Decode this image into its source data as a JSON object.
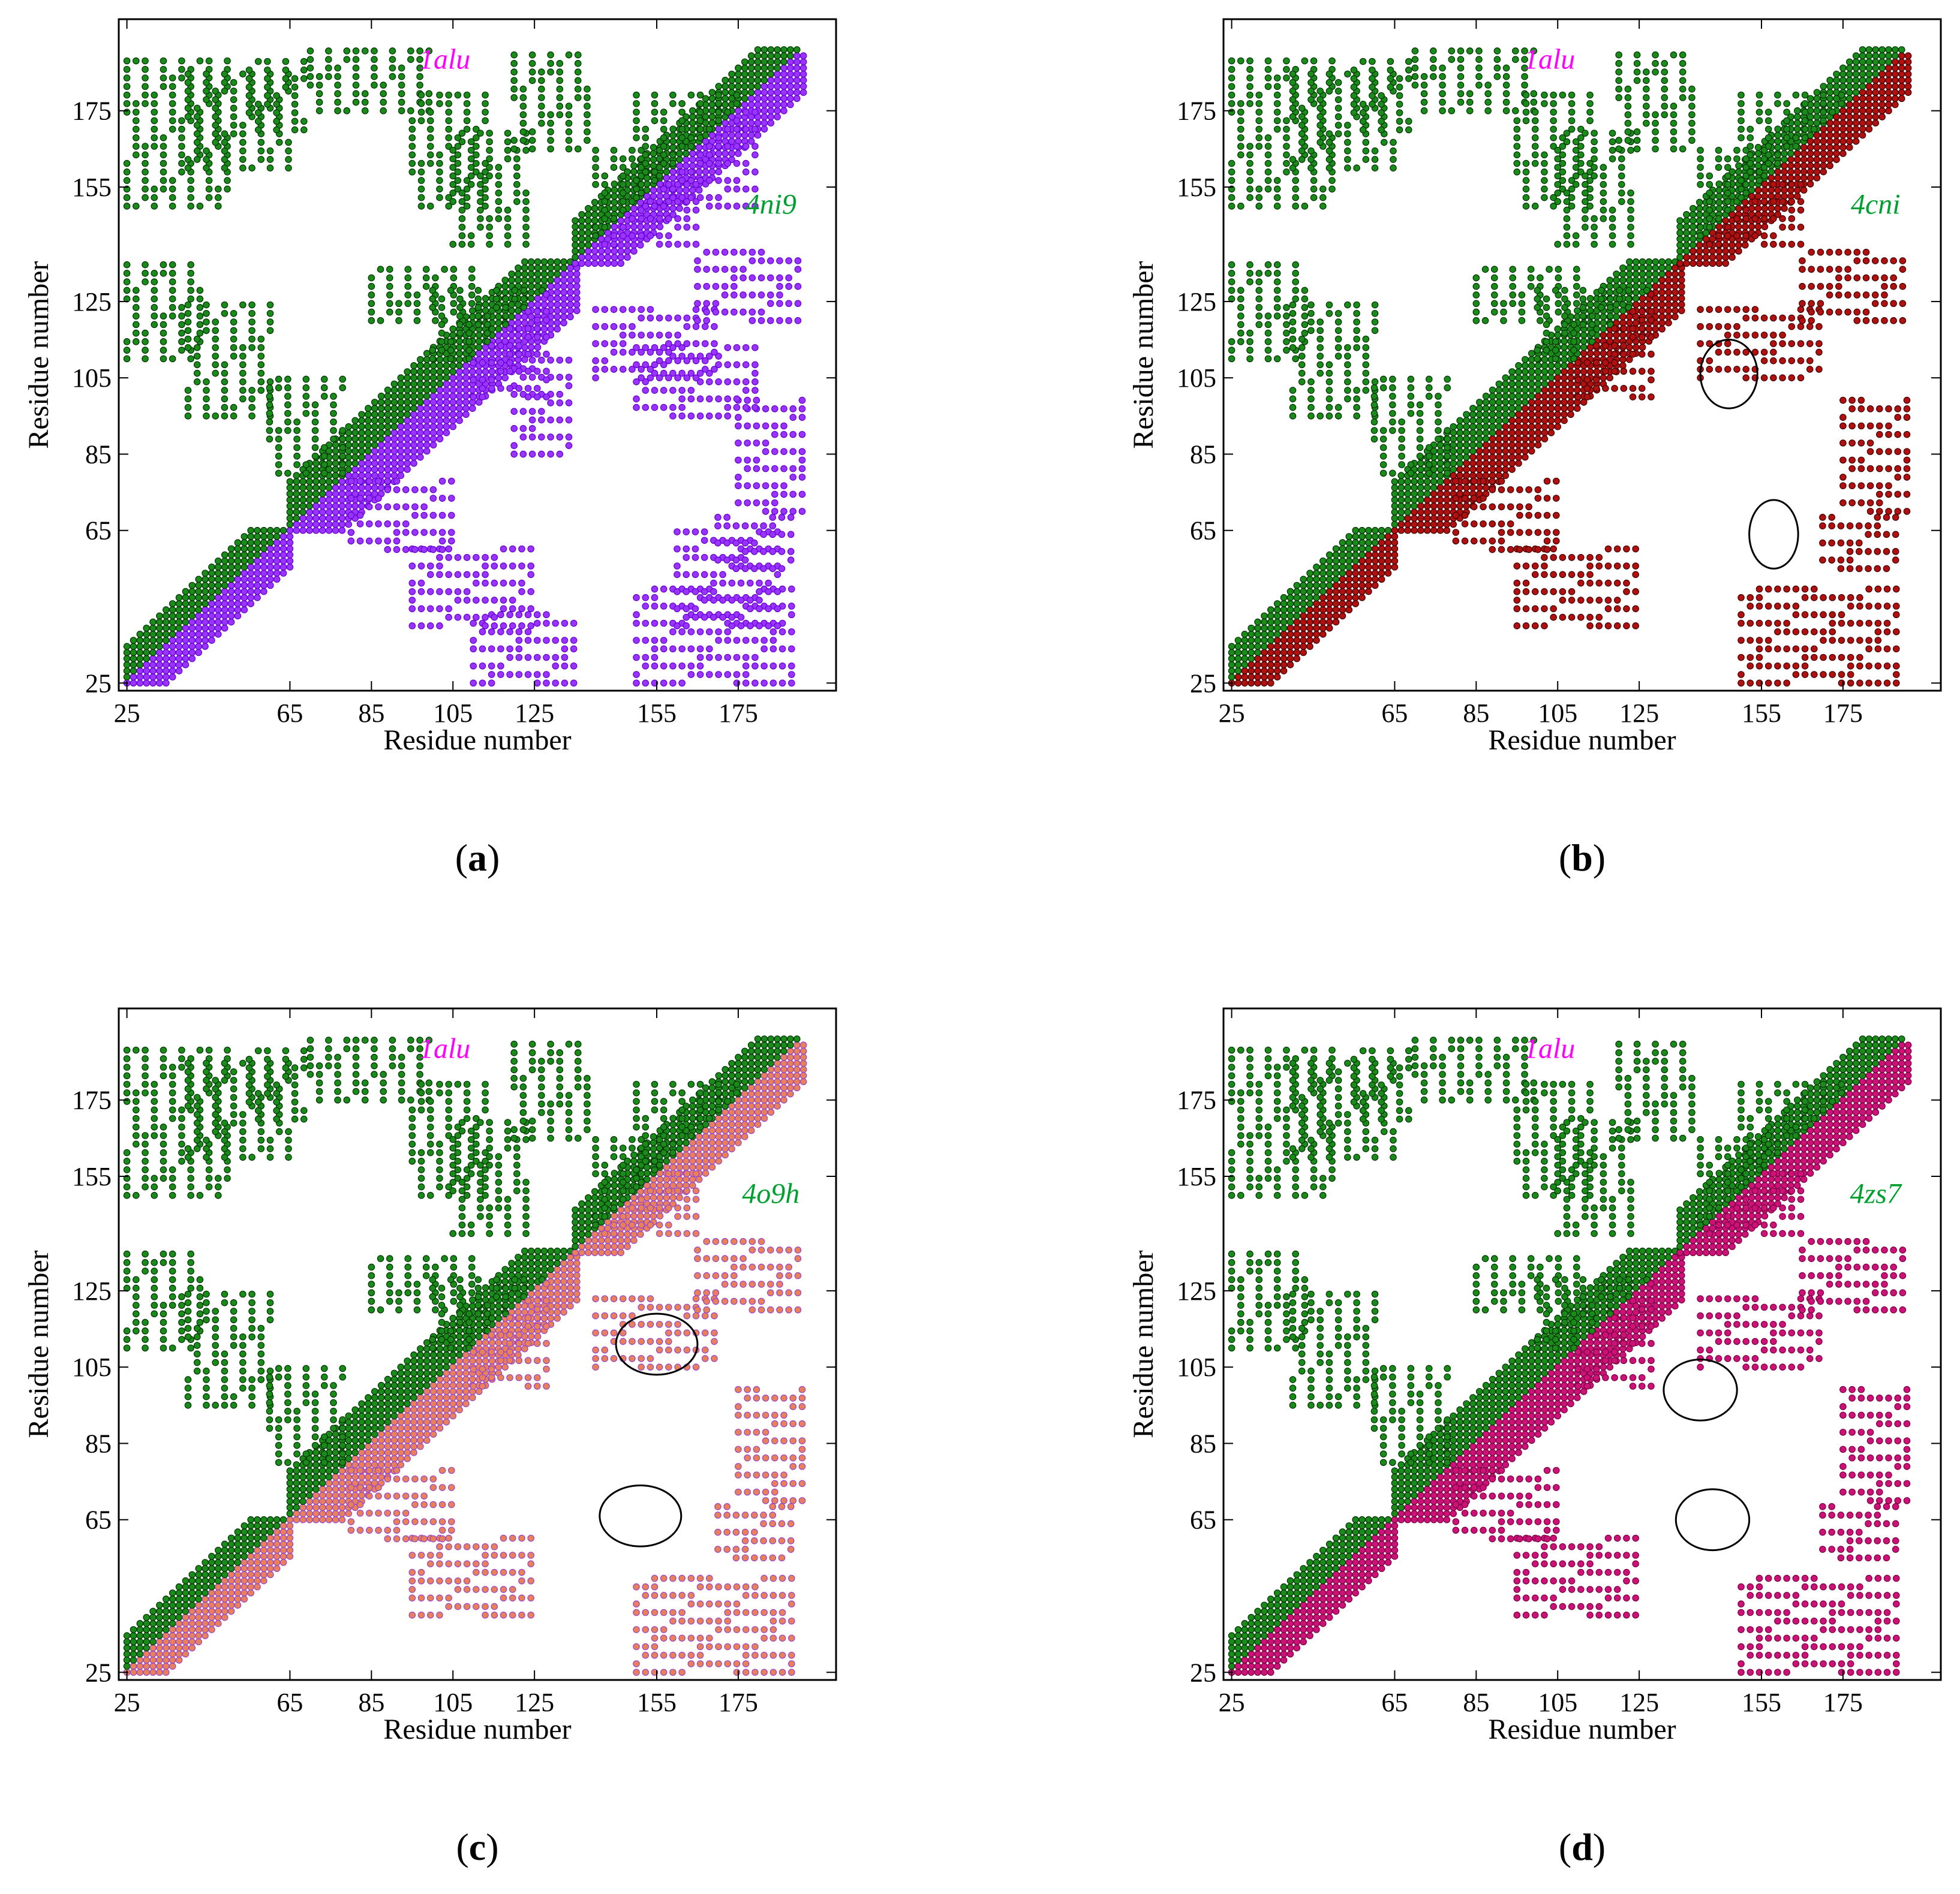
{
  "chart_data": [
    {
      "type": "scatter",
      "panel": "(a)",
      "panel_letter": "a",
      "xlabel": "Residue number",
      "ylabel": "Residue number",
      "xlim": [
        23,
        199
      ],
      "ylim": [
        23,
        199
      ],
      "xticks": [
        25,
        65,
        85,
        105,
        125,
        155,
        175
      ],
      "yticks": [
        25,
        65,
        85,
        105,
        125,
        155,
        175
      ],
      "series": [
        {
          "name": "1alu",
          "color": "#1a8a1a",
          "edge": "#003300",
          "side": "upper"
        },
        {
          "name": "4ni9",
          "color": "#9933ff",
          "edge": "#6600cc",
          "side": "lower"
        }
      ],
      "circles": []
    },
    {
      "type": "scatter",
      "panel": "(b)",
      "panel_letter": "b",
      "xlabel": "Residue number",
      "ylabel": "Residue number",
      "xlim": [
        23,
        199
      ],
      "ylim": [
        23,
        199
      ],
      "xticks": [
        25,
        65,
        85,
        105,
        125,
        155,
        175
      ],
      "yticks": [
        25,
        65,
        85,
        105,
        125,
        155,
        175
      ],
      "series": [
        {
          "name": "1alu",
          "color": "#1a8a1a",
          "edge": "#003300",
          "side": "upper"
        },
        {
          "name": "4cni",
          "color": "#b01010",
          "edge": "#400000",
          "side": "lower"
        }
      ],
      "circles": [
        {
          "x": 147,
          "y": 106,
          "rx": 7,
          "ry": 9
        },
        {
          "x": 158,
          "y": 64,
          "rx": 6,
          "ry": 9
        }
      ]
    },
    {
      "type": "scatter",
      "panel": "(c)",
      "panel_letter": "c",
      "xlabel": "Residue number",
      "ylabel": "Residue number",
      "xlim": [
        23,
        199
      ],
      "ylim": [
        23,
        199
      ],
      "xticks": [
        25,
        65,
        85,
        105,
        125,
        155,
        175
      ],
      "yticks": [
        25,
        65,
        85,
        105,
        125,
        155,
        175
      ],
      "series": [
        {
          "name": "1alu",
          "color": "#1a8a1a",
          "edge": "#003300",
          "side": "upper"
        },
        {
          "name": "4o9h",
          "color": "#e8805a",
          "edge": "#9944cc",
          "side": "lower"
        }
      ],
      "circles": [
        {
          "x": 155,
          "y": 111,
          "rx": 10,
          "ry": 8
        },
        {
          "x": 151,
          "y": 66,
          "rx": 10,
          "ry": 8
        }
      ]
    },
    {
      "type": "scatter",
      "panel": "(d)",
      "panel_letter": "d",
      "xlabel": "Residue number",
      "ylabel": "Residue number",
      "xlim": [
        23,
        199
      ],
      "ylim": [
        23,
        199
      ],
      "xticks": [
        25,
        65,
        85,
        105,
        125,
        155,
        175
      ],
      "yticks": [
        25,
        65,
        85,
        105,
        125,
        155,
        175
      ],
      "series": [
        {
          "name": "1alu",
          "color": "#1a8a1a",
          "edge": "#003300",
          "side": "upper"
        },
        {
          "name": "4zs7",
          "color": "#cc1177",
          "edge": "#7a0044",
          "side": "lower"
        }
      ],
      "circles": [
        {
          "x": 140,
          "y": 99,
          "rx": 9,
          "ry": 8
        },
        {
          "x": 143,
          "y": 65,
          "rx": 9,
          "ry": 8
        }
      ]
    }
  ]
}
